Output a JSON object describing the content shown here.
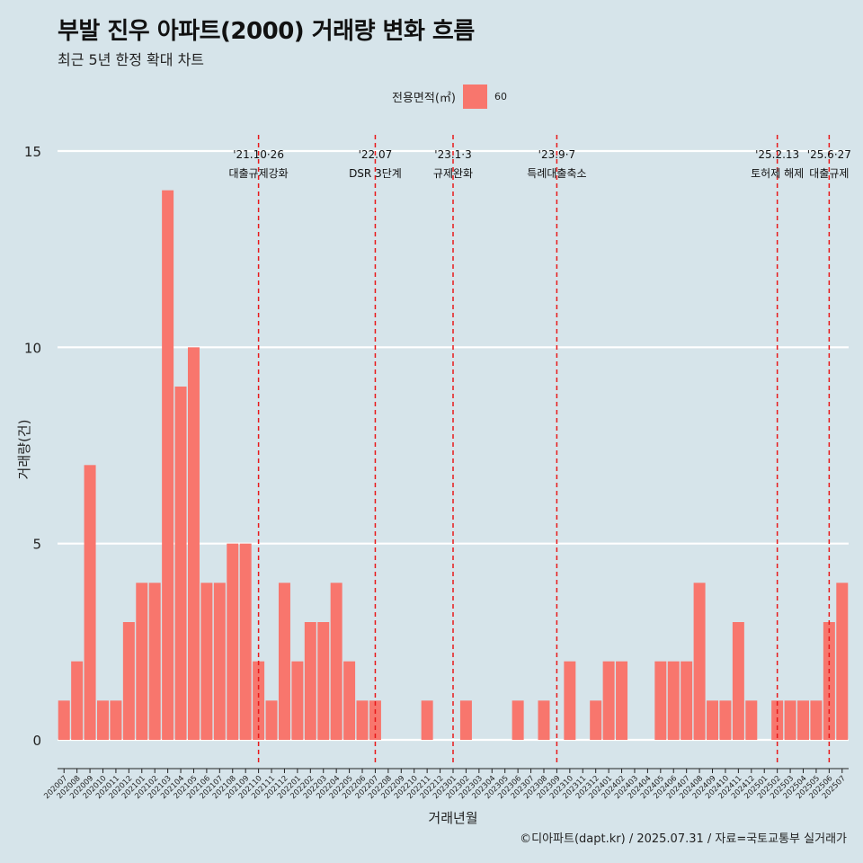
{
  "title": "부발 진우 아파트(2000) 거래량 변화 흐름",
  "subtitle": "최근 5년 한정 확대 차트",
  "legend": {
    "title": "전용면적(㎡)",
    "label": "60",
    "color": "#f8766d"
  },
  "caption": "©디아파트(dapt.kr) / 2025.07.31 / 자료=국토교통부 실거래가",
  "chart_data": {
    "type": "bar",
    "xlabel": "거래년월",
    "ylabel": "거래량(건)",
    "ylim": [
      0,
      15
    ],
    "yticks": [
      0,
      5,
      10,
      15
    ],
    "grid": true,
    "legend_position": "top",
    "bar_color": "#f8766d",
    "categories": [
      "202007",
      "202008",
      "202009",
      "202010",
      "202011",
      "202012",
      "202101",
      "202102",
      "202103",
      "202104",
      "202105",
      "202106",
      "202107",
      "202108",
      "202109",
      "202110",
      "202111",
      "202112",
      "202201",
      "202202",
      "202203",
      "202204",
      "202205",
      "202206",
      "202207",
      "202208",
      "202209",
      "202210",
      "202211",
      "202212",
      "202301",
      "202302",
      "202303",
      "202304",
      "202305",
      "202306",
      "202307",
      "202308",
      "202309",
      "202310",
      "202311",
      "202312",
      "202401",
      "202402",
      "202403",
      "202404",
      "202405",
      "202406",
      "202407",
      "202408",
      "202409",
      "202410",
      "202411",
      "202412",
      "202501",
      "202502",
      "202503",
      "202504",
      "202505",
      "202506",
      "202507"
    ],
    "series": [
      {
        "name": "60",
        "values": [
          1,
          2,
          7,
          1,
          1,
          3,
          4,
          4,
          14,
          9,
          10,
          4,
          4,
          5,
          5,
          2,
          1,
          4,
          2,
          3,
          3,
          4,
          2,
          1,
          1,
          0,
          0,
          0,
          1,
          0,
          0,
          1,
          0,
          0,
          0,
          1,
          0,
          1,
          0,
          2,
          0,
          1,
          2,
          2,
          0,
          0,
          2,
          2,
          2,
          4,
          1,
          1,
          3,
          1,
          0,
          1,
          1,
          1,
          1,
          3,
          4
        ]
      }
    ],
    "annotations": [
      {
        "category": "202110",
        "date": "'21.10·26",
        "label": "대출규제강화"
      },
      {
        "category": "202207",
        "date": "'22.07",
        "label": "DSR 3단계"
      },
      {
        "category": "202301",
        "date": "'23.1·3",
        "label": "규제완화"
      },
      {
        "category": "202309",
        "date": "'23.9·7",
        "label": "특례대출축소"
      },
      {
        "category": "202502",
        "date": "'25.2.13",
        "label": "토허제 해제"
      },
      {
        "category": "202506",
        "date": "'25.6·27",
        "label": "대출규제"
      }
    ]
  }
}
